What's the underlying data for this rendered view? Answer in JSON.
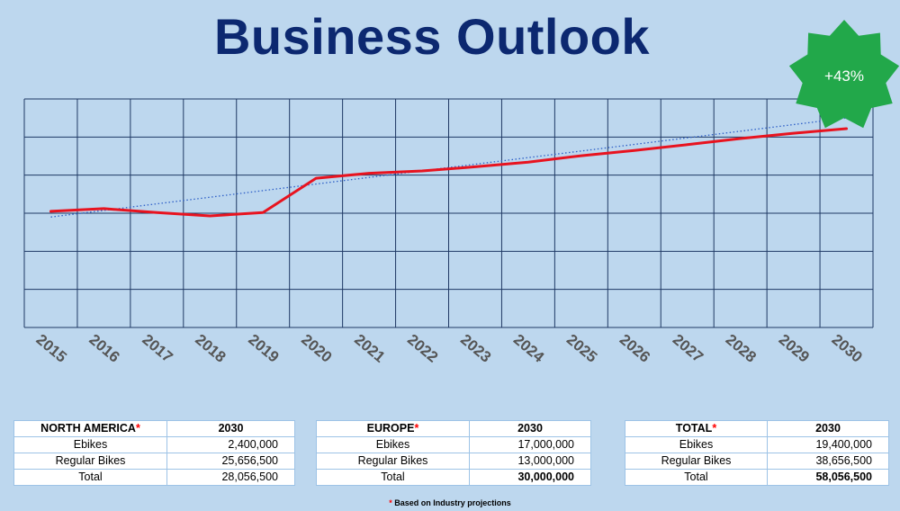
{
  "chart_data": {
    "type": "line",
    "title": "Business Outlook",
    "x": [
      "2015",
      "2016",
      "2017",
      "2018",
      "2019",
      "2020",
      "2021",
      "2022",
      "2023",
      "2024",
      "2025",
      "2026",
      "2027",
      "2028",
      "2029",
      "2030"
    ],
    "series": [
      {
        "values": [
          3.05,
          3.12,
          3.02,
          2.93,
          3.02,
          3.92,
          4.05,
          4.11,
          4.22,
          4.34,
          4.51,
          4.65,
          4.8,
          4.96,
          5.1,
          5.22
        ],
        "color": "#e8131f"
      }
    ],
    "trendline": {
      "start": 2.9,
      "end": 5.5,
      "style": "dotted",
      "color": "#2e5fc7"
    },
    "ylim": [
      0,
      6
    ],
    "grid": true,
    "grid_color": "#1f3864",
    "badge": {
      "text": "+43%",
      "color": "#22a84a",
      "position": "top-right"
    }
  },
  "tables": [
    {
      "region": "NORTH AMERICA",
      "marker": "*",
      "year": "2030",
      "rows": [
        {
          "label": "Ebikes",
          "value": "2,400,000"
        },
        {
          "label": "Regular Bikes",
          "value": "25,656,500"
        },
        {
          "label": "Total",
          "value": "28,056,500"
        }
      ]
    },
    {
      "region": "EUROPE",
      "marker": "*",
      "year": "2030",
      "rows": [
        {
          "label": "Ebikes",
          "value": "17,000,000"
        },
        {
          "label": "Regular Bikes",
          "value": "13,000,000"
        },
        {
          "label": "Total",
          "value": "30,000,000"
        }
      ]
    },
    {
      "region": "TOTAL",
      "marker": "*",
      "year": "2030",
      "rows": [
        {
          "label": "Ebikes",
          "value": "19,400,000"
        },
        {
          "label": "Regular Bikes",
          "value": "38,656,500"
        },
        {
          "label": "Total",
          "value": "58,056,500"
        }
      ]
    }
  ],
  "footnote": {
    "marker": "*",
    "text": "Based on Industry projections"
  }
}
